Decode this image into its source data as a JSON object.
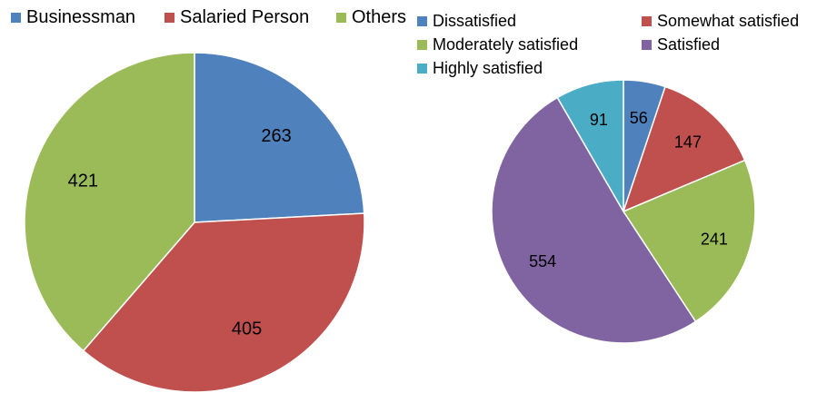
{
  "chart_data": [
    {
      "type": "pie",
      "title": "",
      "legend_placement": "top-left",
      "categories": [
        "Businessman",
        "Salaried Person",
        "Others"
      ],
      "values": [
        263,
        405,
        421
      ],
      "colors": [
        "#4F81BD",
        "#C0504D",
        "#9BBB59"
      ]
    },
    {
      "type": "pie",
      "title": "",
      "legend_placement": "top-right",
      "categories": [
        "Dissatisfied",
        "Somewhat satisfied",
        "Moderately satisfied",
        "Satisfied",
        "Highly satisfied"
      ],
      "values": [
        56,
        147,
        241,
        554,
        91
      ],
      "colors": [
        "#4F81BD",
        "#C0504D",
        "#9BBB59",
        "#8064A2",
        "#4BACC6"
      ]
    }
  ]
}
